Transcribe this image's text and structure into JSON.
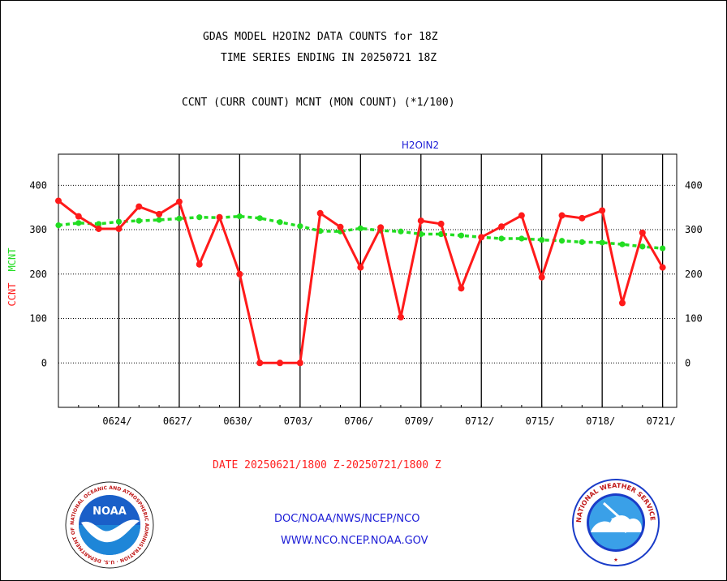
{
  "header": {
    "title_line1": "GDAS MODEL H2OIN2 DATA COUNTS for 18Z",
    "title_line2": "TIME SERIES ENDING IN 20250721 18Z",
    "subtitle": "CCNT (CURR COUNT) MCNT (MON COUNT) (*1/100)"
  },
  "footer": {
    "date_range": "DATE 20250621/1800 Z-20250721/1800 Z",
    "link1": "DOC/NOAA/NWS/NCEP/NCO",
    "link2": "WWW.NCO.NCEP.NOAA.GOV",
    "noaa_logo_text": "NOAA",
    "noaa_ring_text": "NATIONAL OCEANIC AND ATMOSPHERIC ADMINISTRATION · U.S. DEPARTMENT OF COMMERCE",
    "nws_ring_text": "NATIONAL WEATHER SERVICE"
  },
  "chart_data": {
    "type": "line",
    "title": "H2OIN2",
    "ylabel_ccnt": "CCNT",
    "ylabel_mcnt": "MCNT",
    "ylim": [
      -100,
      470
    ],
    "yticks": [
      0,
      100,
      200,
      300,
      400
    ],
    "ytick_labels": [
      "0",
      "100",
      "200",
      "300",
      "400"
    ],
    "x_tick_labels": [
      "0624/",
      "0627/",
      "0630/",
      "0703/",
      "0706/",
      "0709/",
      "0712/",
      "0715/",
      "0718/",
      "0721/"
    ],
    "x_tick_days": [
      3,
      6,
      9,
      12,
      15,
      18,
      21,
      24,
      27,
      30
    ],
    "xlim": [
      0,
      30.7
    ],
    "colors": {
      "ccnt": "#ff1a1a",
      "mcnt": "#22dd22",
      "grid": "#000000",
      "title": "#1c1cd6"
    },
    "series": [
      {
        "name": "CCNT",
        "x": [
          0,
          1,
          2,
          3,
          4,
          5,
          6,
          7,
          8,
          9,
          10,
          11,
          12,
          13,
          14,
          15,
          16,
          17,
          18,
          19,
          20,
          21,
          22,
          23,
          24,
          25,
          26,
          27,
          28,
          29,
          30
        ],
        "values": [
          365,
          330,
          302,
          302,
          352,
          335,
          363,
          222,
          328,
          200,
          0,
          0,
          0,
          337,
          306,
          215,
          305,
          103,
          320,
          313,
          168,
          283,
          307,
          332,
          193,
          332,
          326,
          343,
          135,
          293,
          215
        ]
      },
      {
        "name": "MCNT",
        "x": [
          0,
          1,
          2,
          3,
          4,
          5,
          6,
          7,
          8,
          9,
          10,
          11,
          12,
          13,
          14,
          15,
          16,
          17,
          18,
          19,
          20,
          21,
          22,
          23,
          24,
          25,
          26,
          27,
          28,
          29,
          30
        ],
        "values": [
          310,
          315,
          313,
          318,
          320,
          322,
          325,
          328,
          327,
          330,
          326,
          317,
          308,
          297,
          296,
          303,
          298,
          296,
          290,
          290,
          287,
          283,
          280,
          280,
          277,
          275,
          272,
          271,
          267,
          262,
          258
        ]
      }
    ]
  }
}
